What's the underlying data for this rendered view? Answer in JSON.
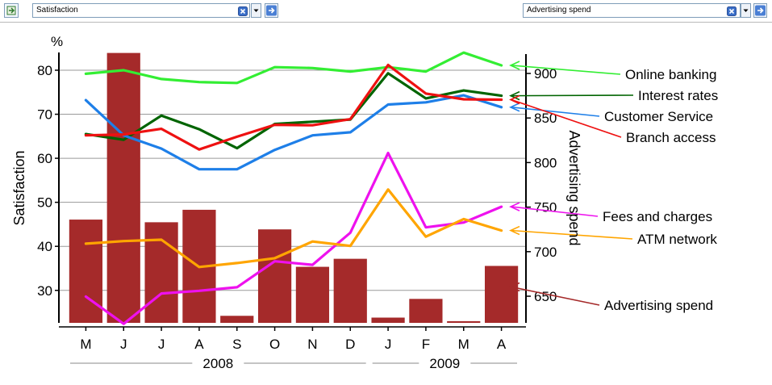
{
  "toolbar": {
    "left_select": {
      "value": "Satisfaction"
    },
    "right_select": {
      "value": "Advertising spend"
    },
    "icons": {
      "export": "export-icon",
      "clear": "clear-icon",
      "dropdown": "chevron-down-icon",
      "go": "arrow-right-icon"
    }
  },
  "chart_data": {
    "type": "line",
    "title": "",
    "y_unit": "%",
    "ylabel": "Satisfaction",
    "y2label": "Advertising spend",
    "ylim": [
      22,
      84
    ],
    "y_ticks": [
      30,
      40,
      50,
      60,
      70,
      80
    ],
    "y2lim": [
      623,
      930
    ],
    "y2_ticks": [
      650,
      700,
      750,
      800,
      850,
      900
    ],
    "categories": [
      "M",
      "J",
      "J",
      "A",
      "S",
      "O",
      "N",
      "D",
      "J",
      "F",
      "M",
      "A"
    ],
    "years": [
      {
        "label": "2008",
        "from": 0,
        "to": 7
      },
      {
        "label": "2009",
        "from": 8,
        "to": 11
      }
    ],
    "series": [
      {
        "name": "Online banking",
        "color": "#33ee33",
        "values": [
          79.2,
          80.0,
          78.0,
          77.3,
          77.1,
          80.7,
          80.5,
          79.7,
          80.7,
          79.7,
          84.0,
          81.1
        ]
      },
      {
        "name": "Interest rates",
        "color": "#006400",
        "values": [
          65.5,
          64.2,
          69.7,
          66.6,
          62.3,
          67.8,
          68.3,
          68.8,
          79.3,
          73.6,
          75.4,
          74.2
        ]
      },
      {
        "name": "Customer Service",
        "color": "#1e7fe8",
        "values": [
          73.2,
          65.2,
          62.2,
          57.5,
          57.5,
          61.9,
          65.2,
          65.9,
          72.2,
          72.7,
          74.3,
          71.6
        ]
      },
      {
        "name": "Branch access",
        "color": "#ee1111",
        "values": [
          65.2,
          65.4,
          66.7,
          62.0,
          64.9,
          67.6,
          67.5,
          68.9,
          81.2,
          74.7,
          73.4,
          73.3
        ]
      },
      {
        "name": "Fees and charges",
        "color": "#ee11ee",
        "values": [
          28.6,
          22.4,
          29.3,
          29.9,
          30.7,
          36.6,
          35.8,
          43.1,
          61.2,
          44.3,
          45.4,
          49.0
        ]
      },
      {
        "name": "ATM network",
        "color": "#ffa500",
        "values": [
          40.6,
          41.2,
          41.5,
          35.3,
          36.2,
          37.3,
          41.1,
          40.1,
          52.9,
          42.2,
          46.2,
          43.6
        ]
      }
    ],
    "bars": {
      "name": "Advertising spend",
      "color": "#a52a2a",
      "axis": "right",
      "values": [
        736,
        923,
        733,
        747,
        628,
        725,
        683,
        692,
        626,
        647,
        622,
        684
      ]
    }
  }
}
